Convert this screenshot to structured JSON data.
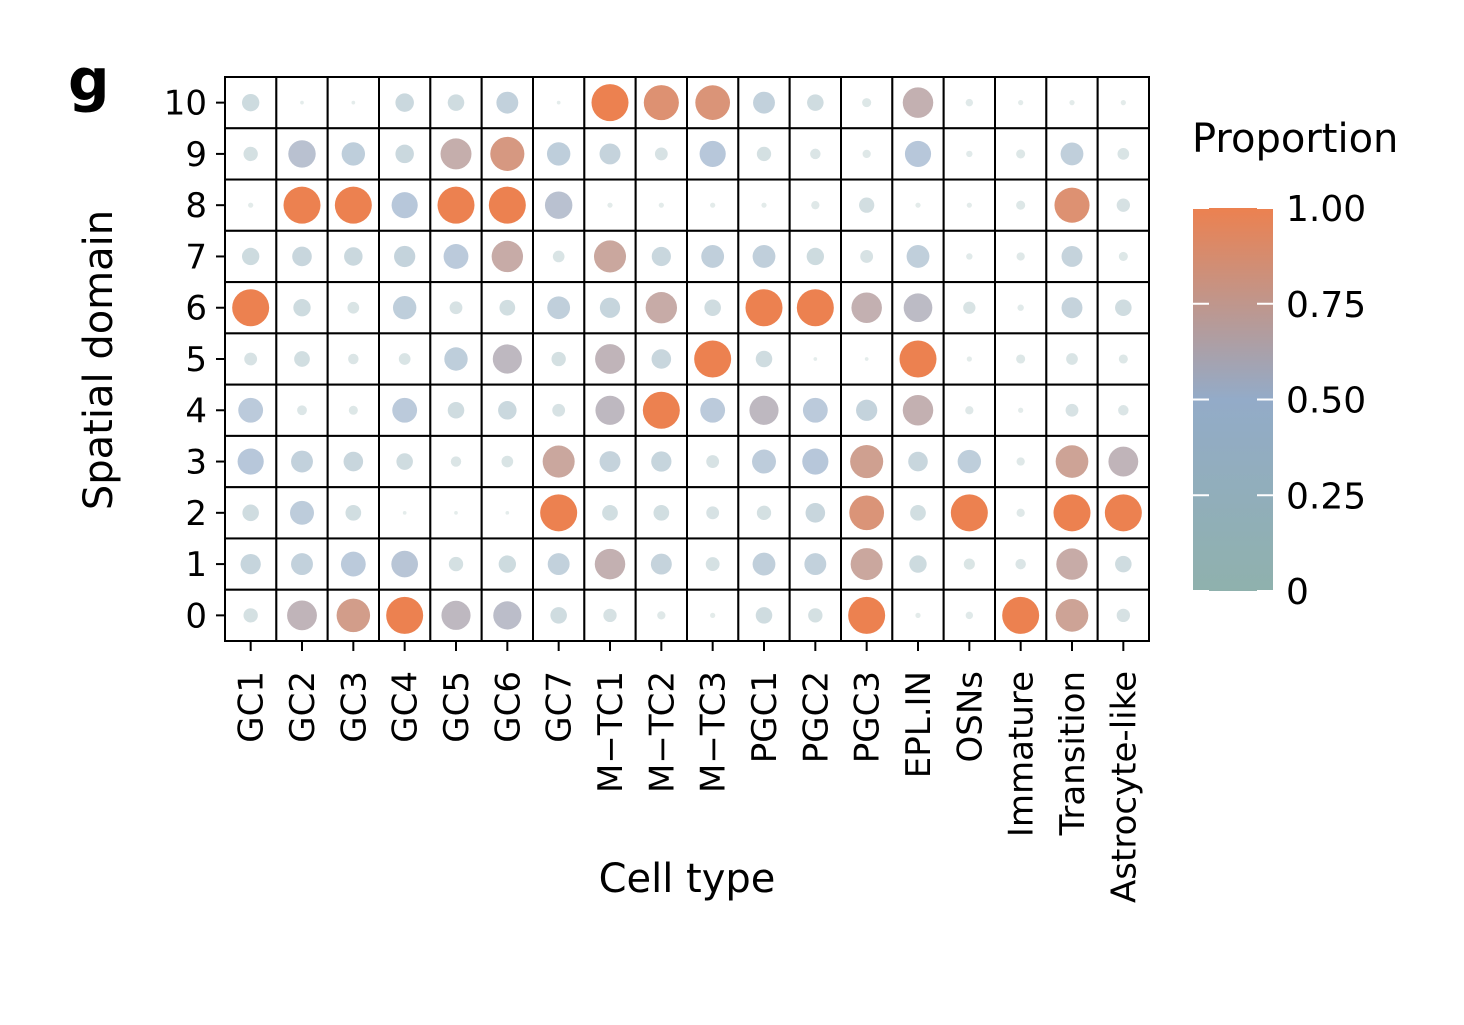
{
  "panel_label": "g",
  "chart_data": {
    "type": "dotplot",
    "title": "",
    "xlabel": "Cell type",
    "ylabel": "Spatial domain",
    "x_categories": [
      "GC1",
      "GC2",
      "GC3",
      "GC4",
      "GC5",
      "GC6",
      "GC7",
      "M−TC1",
      "M−TC2",
      "M−TC3",
      "PGC1",
      "PGC2",
      "PGC3",
      "EPL.IN",
      "OSNs",
      "Immature",
      "Transition",
      "Astrocyte-like"
    ],
    "y_categories": [
      "10",
      "9",
      "8",
      "7",
      "6",
      "5",
      "4",
      "3",
      "2",
      "1",
      "0"
    ],
    "grid": true,
    "legend": {
      "title": "Proportion",
      "placement": "right",
      "ticks": [
        "1.00",
        "0.75",
        "0.50",
        "0.25",
        "0"
      ],
      "range": [
        0,
        1
      ],
      "colors": {
        "low": "#8fb1ad",
        "mid": "#93abc8",
        "high": "#ec8150"
      }
    },
    "values": {
      "10": [
        0.22,
        0.01,
        0.01,
        0.25,
        0.2,
        0.35,
        0.01,
        1.0,
        0.9,
        0.88,
        0.35,
        0.2,
        0.06,
        0.68,
        0.04,
        0.02,
        0.02,
        0.02
      ],
      "9": [
        0.15,
        0.55,
        0.4,
        0.25,
        0.7,
        0.85,
        0.4,
        0.32,
        0.12,
        0.5,
        0.15,
        0.08,
        0.05,
        0.5,
        0.03,
        0.06,
        0.38,
        0.1
      ],
      "8": [
        0.02,
        1.0,
        1.0,
        0.5,
        1.0,
        1.0,
        0.55,
        0.02,
        0.02,
        0.02,
        0.02,
        0.05,
        0.17,
        0.02,
        0.02,
        0.06,
        0.9,
        0.13
      ],
      "7": [
        0.22,
        0.28,
        0.25,
        0.33,
        0.45,
        0.72,
        0.1,
        0.75,
        0.27,
        0.38,
        0.38,
        0.22,
        0.12,
        0.38,
        0.03,
        0.05,
        0.32,
        0.06
      ],
      "6": [
        1.0,
        0.22,
        0.1,
        0.4,
        0.12,
        0.18,
        0.38,
        0.3,
        0.72,
        0.2,
        1.0,
        1.0,
        0.68,
        0.6,
        0.11,
        0.03,
        0.32,
        0.2
      ],
      "5": [
        0.12,
        0.18,
        0.08,
        0.1,
        0.4,
        0.62,
        0.15,
        0.65,
        0.28,
        1.0,
        0.2,
        0.01,
        0.01,
        1.0,
        0.02,
        0.06,
        0.1,
        0.06
      ],
      "4": [
        0.45,
        0.07,
        0.06,
        0.45,
        0.2,
        0.25,
        0.12,
        0.62,
        1.0,
        0.45,
        0.62,
        0.45,
        0.33,
        0.68,
        0.05,
        0.02,
        0.12,
        0.08
      ],
      "3": [
        0.5,
        0.35,
        0.28,
        0.2,
        0.08,
        0.1,
        0.75,
        0.32,
        0.3,
        0.12,
        0.42,
        0.5,
        0.8,
        0.28,
        0.4,
        0.05,
        0.78,
        0.65
      ],
      "2": [
        0.2,
        0.42,
        0.18,
        0.01,
        0.01,
        0.01,
        1.0,
        0.18,
        0.18,
        0.12,
        0.15,
        0.28,
        0.88,
        0.18,
        1.0,
        0.05,
        1.0,
        1.0
      ],
      "1": [
        0.3,
        0.35,
        0.45,
        0.52,
        0.15,
        0.22,
        0.35,
        0.68,
        0.32,
        0.14,
        0.38,
        0.35,
        0.75,
        0.22,
        0.09,
        0.08,
        0.72,
        0.2
      ],
      "0": [
        0.15,
        0.65,
        0.82,
        1.0,
        0.62,
        0.58,
        0.2,
        0.13,
        0.05,
        0.02,
        0.2,
        0.15,
        1.0,
        0.02,
        0.04,
        1.0,
        0.78,
        0.13
      ]
    }
  }
}
